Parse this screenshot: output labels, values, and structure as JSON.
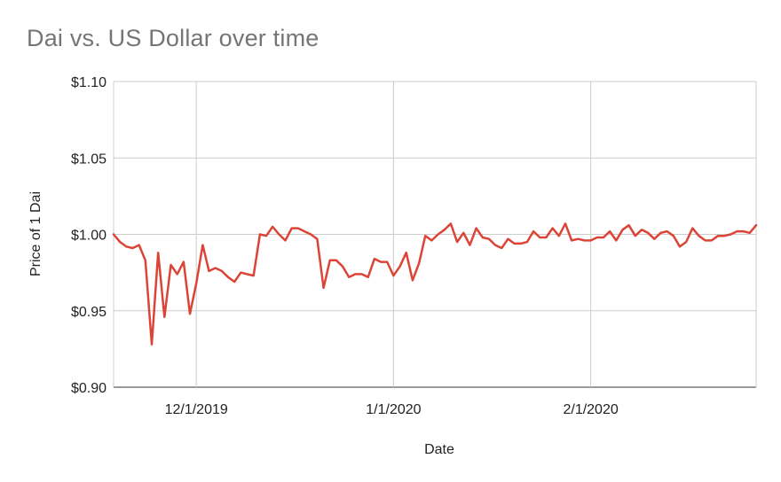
{
  "chart_data": {
    "type": "line",
    "title": "Dai vs. US Dollar over time",
    "xlabel": "Date",
    "ylabel": "Price of 1 Dai",
    "ylim": [
      0.9,
      1.1
    ],
    "xlim": [
      "2019-11-18",
      "2020-02-27"
    ],
    "y_ticks": [
      {
        "value": 1.1,
        "label": "$1.10"
      },
      {
        "value": 1.05,
        "label": "$1.05"
      },
      {
        "value": 1.0,
        "label": "$1.00"
      },
      {
        "value": 0.95,
        "label": "$0.95"
      },
      {
        "value": 0.9,
        "label": "$0.90"
      }
    ],
    "x_ticks": [
      {
        "date": "2019-12-01",
        "label": "12/1/2019"
      },
      {
        "date": "2020-01-01",
        "label": "1/1/2020"
      },
      {
        "date": "2020-02-01",
        "label": "2/1/2020"
      }
    ],
    "grid": true,
    "legend": "none",
    "series": [
      {
        "color": "#db4437",
        "points": [
          [
            "2019-11-18",
            1.0
          ],
          [
            "2019-11-19",
            0.995
          ],
          [
            "2019-11-20",
            0.992
          ],
          [
            "2019-11-21",
            0.991
          ],
          [
            "2019-11-22",
            0.993
          ],
          [
            "2019-11-23",
            0.983
          ],
          [
            "2019-11-24",
            0.928
          ],
          [
            "2019-11-25",
            0.988
          ],
          [
            "2019-11-26",
            0.946
          ],
          [
            "2019-11-27",
            0.98
          ],
          [
            "2019-11-28",
            0.974
          ],
          [
            "2019-11-29",
            0.982
          ],
          [
            "2019-11-30",
            0.948
          ],
          [
            "2019-12-01",
            0.968
          ],
          [
            "2019-12-02",
            0.993
          ],
          [
            "2019-12-03",
            0.976
          ],
          [
            "2019-12-04",
            0.978
          ],
          [
            "2019-12-05",
            0.976
          ],
          [
            "2019-12-06",
            0.972
          ],
          [
            "2019-12-07",
            0.969
          ],
          [
            "2019-12-08",
            0.975
          ],
          [
            "2019-12-09",
            0.974
          ],
          [
            "2019-12-10",
            0.973
          ],
          [
            "2019-12-11",
            1.0
          ],
          [
            "2019-12-12",
            0.999
          ],
          [
            "2019-12-13",
            1.005
          ],
          [
            "2019-12-14",
            1.0
          ],
          [
            "2019-12-15",
            0.996
          ],
          [
            "2019-12-16",
            1.004
          ],
          [
            "2019-12-17",
            1.004
          ],
          [
            "2019-12-18",
            1.002
          ],
          [
            "2019-12-19",
            1.0
          ],
          [
            "2019-12-20",
            0.997
          ],
          [
            "2019-12-21",
            0.965
          ],
          [
            "2019-12-22",
            0.983
          ],
          [
            "2019-12-23",
            0.983
          ],
          [
            "2019-12-24",
            0.979
          ],
          [
            "2019-12-25",
            0.972
          ],
          [
            "2019-12-26",
            0.974
          ],
          [
            "2019-12-27",
            0.974
          ],
          [
            "2019-12-28",
            0.972
          ],
          [
            "2019-12-29",
            0.984
          ],
          [
            "2019-12-30",
            0.982
          ],
          [
            "2019-12-31",
            0.982
          ],
          [
            "2020-01-01",
            0.973
          ],
          [
            "2020-01-02",
            0.979
          ],
          [
            "2020-01-03",
            0.988
          ],
          [
            "2020-01-04",
            0.97
          ],
          [
            "2020-01-05",
            0.981
          ],
          [
            "2020-01-06",
            0.999
          ],
          [
            "2020-01-07",
            0.996
          ],
          [
            "2020-01-08",
            1.0
          ],
          [
            "2020-01-09",
            1.003
          ],
          [
            "2020-01-10",
            1.007
          ],
          [
            "2020-01-11",
            0.995
          ],
          [
            "2020-01-12",
            1.001
          ],
          [
            "2020-01-13",
            0.993
          ],
          [
            "2020-01-14",
            1.004
          ],
          [
            "2020-01-15",
            0.998
          ],
          [
            "2020-01-16",
            0.997
          ],
          [
            "2020-01-17",
            0.993
          ],
          [
            "2020-01-18",
            0.991
          ],
          [
            "2020-01-19",
            0.997
          ],
          [
            "2020-01-20",
            0.994
          ],
          [
            "2020-01-21",
            0.994
          ],
          [
            "2020-01-22",
            0.995
          ],
          [
            "2020-01-23",
            1.002
          ],
          [
            "2020-01-24",
            0.998
          ],
          [
            "2020-01-25",
            0.998
          ],
          [
            "2020-01-26",
            1.004
          ],
          [
            "2020-01-27",
            0.999
          ],
          [
            "2020-01-28",
            1.007
          ],
          [
            "2020-01-29",
            0.996
          ],
          [
            "2020-01-30",
            0.997
          ],
          [
            "2020-01-31",
            0.996
          ],
          [
            "2020-02-01",
            0.996
          ],
          [
            "2020-02-02",
            0.998
          ],
          [
            "2020-02-03",
            0.998
          ],
          [
            "2020-02-04",
            1.002
          ],
          [
            "2020-02-05",
            0.996
          ],
          [
            "2020-02-06",
            1.003
          ],
          [
            "2020-02-07",
            1.006
          ],
          [
            "2020-02-08",
            0.999
          ],
          [
            "2020-02-09",
            1.003
          ],
          [
            "2020-02-10",
            1.001
          ],
          [
            "2020-02-11",
            0.997
          ],
          [
            "2020-02-12",
            1.001
          ],
          [
            "2020-02-13",
            1.002
          ],
          [
            "2020-02-14",
            0.999
          ],
          [
            "2020-02-15",
            0.992
          ],
          [
            "2020-02-16",
            0.995
          ],
          [
            "2020-02-17",
            1.004
          ],
          [
            "2020-02-18",
            0.999
          ],
          [
            "2020-02-19",
            0.996
          ],
          [
            "2020-02-20",
            0.996
          ],
          [
            "2020-02-21",
            0.999
          ],
          [
            "2020-02-22",
            0.999
          ],
          [
            "2020-02-23",
            1.0
          ],
          [
            "2020-02-24",
            1.002
          ],
          [
            "2020-02-25",
            1.002
          ],
          [
            "2020-02-26",
            1.001
          ],
          [
            "2020-02-27",
            1.006
          ]
        ]
      }
    ]
  }
}
